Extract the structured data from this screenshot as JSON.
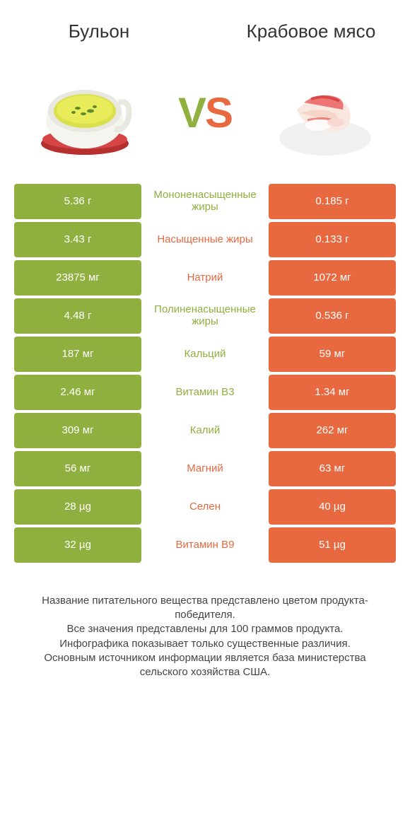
{
  "colors": {
    "green": "#8fb03e",
    "orange": "#e8683f",
    "text": "#333333",
    "footer_text": "#444444",
    "background": "#ffffff"
  },
  "typography": {
    "title_fontsize": 26,
    "vs_fontsize": 60,
    "cell_fontsize": 15,
    "footer_fontsize": 15
  },
  "header": {
    "left_title": "Бульон",
    "right_title": "Крабовое мясо",
    "vs_v": "V",
    "vs_s": "S"
  },
  "images": {
    "left_alt": "broth-bowl",
    "right_alt": "crab-meat"
  },
  "rows": [
    {
      "left": "5.36 г",
      "mid": "Мононенасыщенные жиры",
      "right": "0.185 г",
      "winner": "left"
    },
    {
      "left": "3.43 г",
      "mid": "Насыщенные жиры",
      "right": "0.133 г",
      "winner": "right"
    },
    {
      "left": "23875 мг",
      "mid": "Натрий",
      "right": "1072 мг",
      "winner": "right"
    },
    {
      "left": "4.48 г",
      "mid": "Полиненасыщенные жиры",
      "right": "0.536 г",
      "winner": "left"
    },
    {
      "left": "187 мг",
      "mid": "Кальций",
      "right": "59 мг",
      "winner": "left"
    },
    {
      "left": "2.46 мг",
      "mid": "Витамин B3",
      "right": "1.34 мг",
      "winner": "left"
    },
    {
      "left": "309 мг",
      "mid": "Калий",
      "right": "262 мг",
      "winner": "left"
    },
    {
      "left": "56 мг",
      "mid": "Магний",
      "right": "63 мг",
      "winner": "right"
    },
    {
      "left": "28 µg",
      "mid": "Селен",
      "right": "40 µg",
      "winner": "right"
    },
    {
      "left": "32 µg",
      "mid": "Витамин B9",
      "right": "51 µg",
      "winner": "right"
    }
  ],
  "footer": {
    "line1": "Название питательного вещества представлено цветом продукта-победителя.",
    "line2": "Все значения представлены для 100 граммов продукта.",
    "line3": "Инфографика показывает только существенные различия.",
    "line4": "Основным источником информации является база министерства сельского хозяйства США."
  }
}
